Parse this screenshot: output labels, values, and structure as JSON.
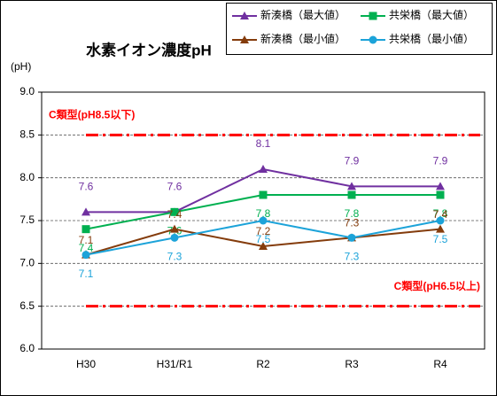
{
  "chart_data": {
    "type": "line",
    "title": "水素イオン濃度pH",
    "y_label": "(pH)",
    "categories": [
      "H30",
      "H31/R1",
      "R2",
      "R3",
      "R4"
    ],
    "series": [
      {
        "name": "新湊橋（最大値）",
        "color": "#7030a0",
        "marker": "triangle",
        "values": [
          7.6,
          7.6,
          8.1,
          7.9,
          7.9
        ]
      },
      {
        "name": "共栄橋（最大値）",
        "color": "#00b050",
        "marker": "square",
        "values": [
          7.4,
          7.6,
          7.8,
          7.8,
          7.8
        ]
      },
      {
        "name": "新湊橋（最小値）",
        "color": "#843c0c",
        "marker": "triangle",
        "values": [
          7.1,
          7.4,
          7.2,
          7.3,
          7.4
        ]
      },
      {
        "name": "共栄橋（最小値）",
        "color": "#1ca3d9",
        "marker": "circle",
        "values": [
          7.1,
          7.3,
          7.5,
          7.3,
          7.5
        ]
      }
    ],
    "reference_lines": [
      {
        "value": 8.5,
        "label": "C類型(pH8.5以下)",
        "color": "#ff0000"
      },
      {
        "value": 6.5,
        "label": "C類型(pH6.5以上)",
        "color": "#ff0000"
      }
    ],
    "ylim": [
      6.0,
      9.0
    ],
    "yticks": [
      {
        "value": 6.0,
        "label": "6.0"
      },
      6.5,
      {
        "value": 7.0,
        "label": "7.0"
      },
      7.5,
      {
        "value": 8.0,
        "label": "8.0"
      },
      8.5,
      {
        "value": 9.0,
        "label": "9.0"
      }
    ],
    "grid": true,
    "legend": "top-right"
  }
}
